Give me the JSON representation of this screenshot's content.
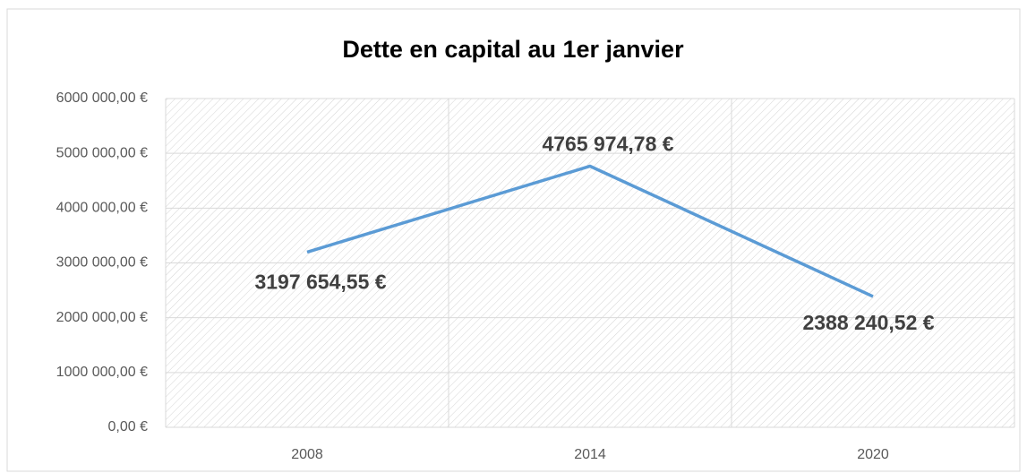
{
  "chart_data": {
    "type": "line",
    "title": "Dette en capital au 1er janvier",
    "categories": [
      "2008",
      "2014",
      "2020"
    ],
    "values": [
      3197654.55,
      4765974.78,
      2388240.52
    ],
    "value_labels": [
      "3197 654,55 €",
      "4765 974,78 €",
      "2388 240,52 €"
    ],
    "color": "#5b9bd5",
    "ylim": [
      0,
      6000000
    ],
    "yticks": [
      {
        "value": 0,
        "label": "0,00 €"
      },
      {
        "value": 1000000,
        "label": "1000 000,00 €"
      },
      {
        "value": 2000000,
        "label": "2000 000,00 €"
      },
      {
        "value": 3000000,
        "label": "3000 000,00 €"
      },
      {
        "value": 4000000,
        "label": "4000 000,00 €"
      },
      {
        "value": 5000000,
        "label": "5000 000,00 €"
      },
      {
        "value": 6000000,
        "label": "6000 000,00 €"
      }
    ],
    "grid": true
  }
}
